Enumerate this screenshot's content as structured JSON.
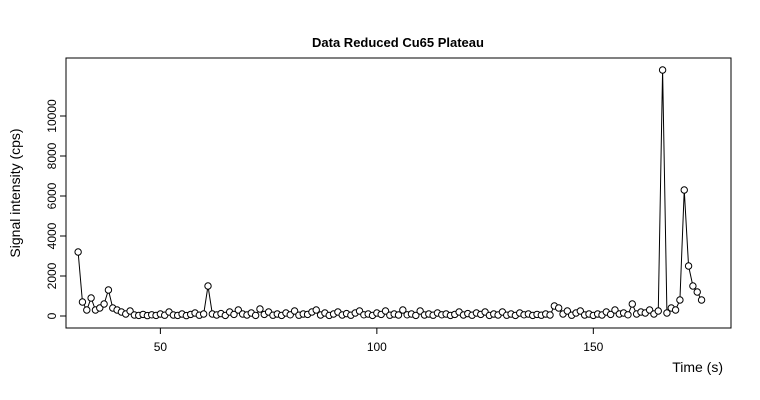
{
  "chart_data": {
    "type": "line",
    "title": "Data Reduced Cu65 Plateau",
    "x_label": "Time (s)",
    "y_label": "Signal intensity (cps)",
    "color": "#000000",
    "markers": true,
    "xlim": [
      28.2,
      181.8
    ],
    "xticks": [
      50,
      100,
      150
    ],
    "ylim": [
      -600,
      12900
    ],
    "yticks": [
      0,
      2000,
      4000,
      6000,
      8000,
      10000
    ],
    "x": [
      31,
      32,
      33,
      34,
      35,
      36,
      37,
      38,
      39,
      40,
      41,
      42,
      43,
      44,
      45,
      46,
      47,
      48,
      49,
      50,
      51,
      52,
      53,
      54,
      55,
      56,
      57,
      58,
      59,
      60,
      61,
      62,
      63,
      64,
      65,
      66,
      67,
      68,
      69,
      70,
      71,
      72,
      73,
      74,
      75,
      76,
      77,
      78,
      79,
      80,
      81,
      82,
      83,
      84,
      85,
      86,
      87,
      88,
      89,
      90,
      91,
      92,
      93,
      94,
      95,
      96,
      97,
      98,
      99,
      100,
      101,
      102,
      103,
      104,
      105,
      106,
      107,
      108,
      109,
      110,
      111,
      112,
      113,
      114,
      115,
      116,
      117,
      118,
      119,
      120,
      121,
      122,
      123,
      124,
      125,
      126,
      127,
      128,
      129,
      130,
      131,
      132,
      133,
      134,
      135,
      136,
      137,
      138,
      139,
      140,
      141,
      142,
      143,
      144,
      145,
      146,
      147,
      148,
      149,
      150,
      151,
      152,
      153,
      154,
      155,
      156,
      157,
      158,
      159,
      160,
      161,
      162,
      163,
      164,
      165,
      166,
      167,
      168,
      169,
      170,
      171,
      172,
      173,
      174,
      175
    ],
    "values": [
      3200,
      700,
      300,
      900,
      300,
      400,
      600,
      1300,
      400,
      300,
      200,
      100,
      250,
      50,
      30,
      80,
      20,
      60,
      30,
      100,
      40,
      200,
      50,
      30,
      100,
      20,
      80,
      150,
      40,
      100,
      1500,
      100,
      50,
      120,
      30,
      200,
      80,
      300,
      100,
      50,
      150,
      30,
      350,
      80,
      200,
      40,
      100,
      30,
      150,
      60,
      250,
      40,
      100,
      80,
      200,
      300,
      50,
      150,
      30,
      100,
      200,
      50,
      120,
      40,
      150,
      250,
      60,
      100,
      30,
      150,
      80,
      250,
      40,
      100,
      50,
      300,
      60,
      100,
      30,
      250,
      50,
      100,
      40,
      150,
      60,
      100,
      30,
      80,
      200,
      50,
      120,
      40,
      150,
      80,
      200,
      30,
      100,
      50,
      200,
      40,
      100,
      30,
      150,
      60,
      100,
      30,
      80,
      40,
      100,
      50,
      500,
      400,
      100,
      250,
      40,
      150,
      250,
      50,
      100,
      30,
      100,
      50,
      200,
      80,
      300,
      100,
      150,
      60,
      600,
      100,
      200,
      150,
      300,
      100,
      250,
      12300,
      150,
      400,
      300,
      800,
      6300,
      2500,
      1500,
      1200,
      800
    ]
  }
}
